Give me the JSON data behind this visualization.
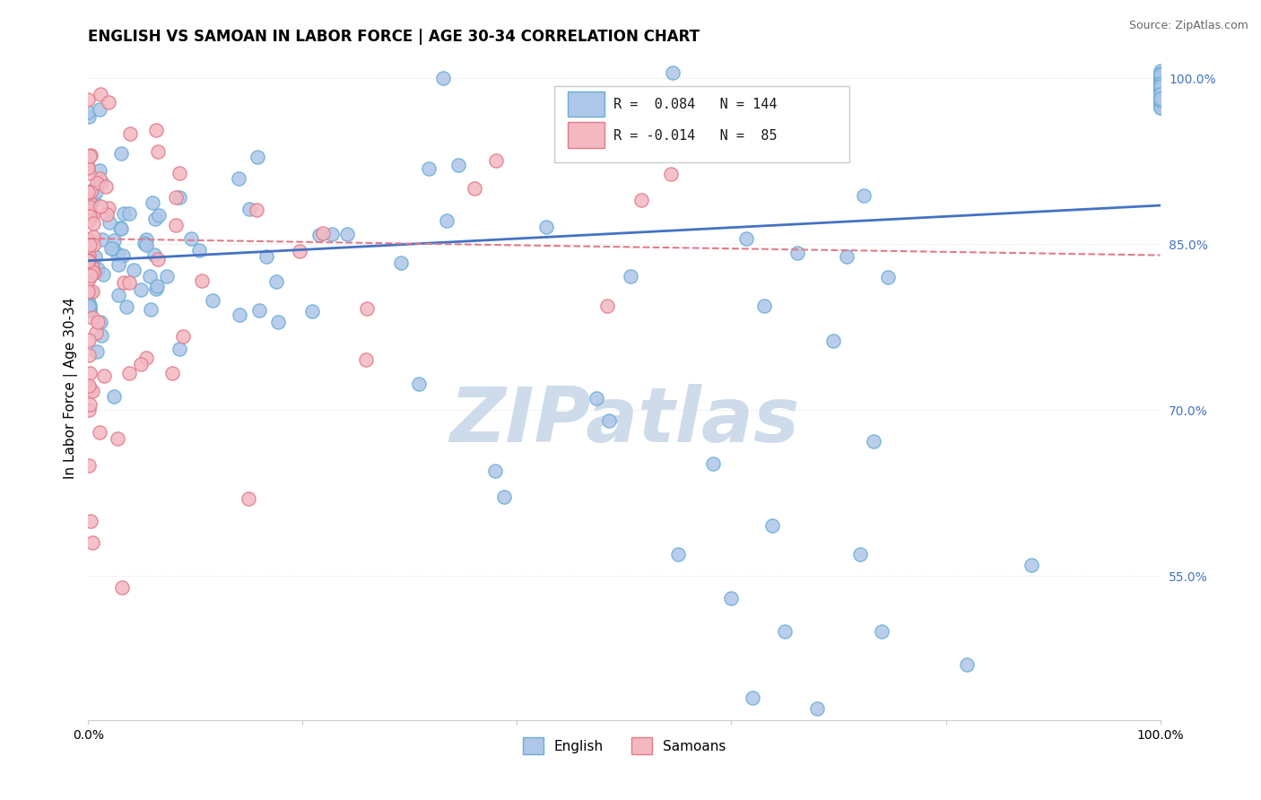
{
  "title": "ENGLISH VS SAMOAN IN LABOR FORCE | AGE 30-34 CORRELATION CHART",
  "source_text": "Source: ZipAtlas.com",
  "ylabel": "In Labor Force | Age 30-34",
  "xlim": [
    0.0,
    1.0
  ],
  "ylim": [
    0.42,
    1.02
  ],
  "ytick_positions": [
    0.55,
    0.7,
    0.85,
    1.0
  ],
  "yticklabels": [
    "55.0%",
    "70.0%",
    "85.0%",
    "100.0%"
  ],
  "english_R": 0.084,
  "english_N": 144,
  "samoan_R": -0.014,
  "samoan_N": 85,
  "english_color": "#aec6e8",
  "english_edge_color": "#6aaed6",
  "samoan_color": "#f4b8c1",
  "samoan_edge_color": "#e07b8a",
  "english_line_color": "#4472c4",
  "samoan_line_color": "#e07b8a",
  "watermark_color": "#c8d8e8",
  "background_color": "#ffffff",
  "grid_color": "#e0e0e0",
  "eng_trend_slope": 0.05,
  "eng_trend_intercept": 0.835,
  "sam_trend_slope": -0.015,
  "sam_trend_intercept": 0.855
}
